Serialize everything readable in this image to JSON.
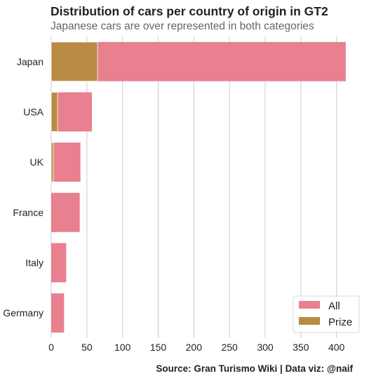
{
  "chart_data": {
    "type": "bar",
    "orientation": "horizontal",
    "title": "Distribution of cars per country of origin in GT2",
    "subtitle": "Japanese cars are over represented in both categories",
    "source": "Source: Gran Turismo Wiki | Data viz: @naif",
    "categories": [
      "Japan",
      "USA",
      "UK",
      "France",
      "Italy",
      "Germany"
    ],
    "series": [
      {
        "name": "All",
        "color": "#e8808f",
        "values": [
          413,
          57,
          41,
          40,
          21,
          18
        ]
      },
      {
        "name": "Prize",
        "color": "#b98b44",
        "values": [
          65,
          9,
          3,
          0,
          0,
          0
        ]
      }
    ],
    "xlim": [
      0,
      420
    ],
    "xticks": [
      0,
      50,
      100,
      150,
      200,
      250,
      300,
      350,
      400
    ],
    "xlabel": "",
    "ylabel": "",
    "grid": "vertical",
    "legend_position": "bottom-right"
  }
}
